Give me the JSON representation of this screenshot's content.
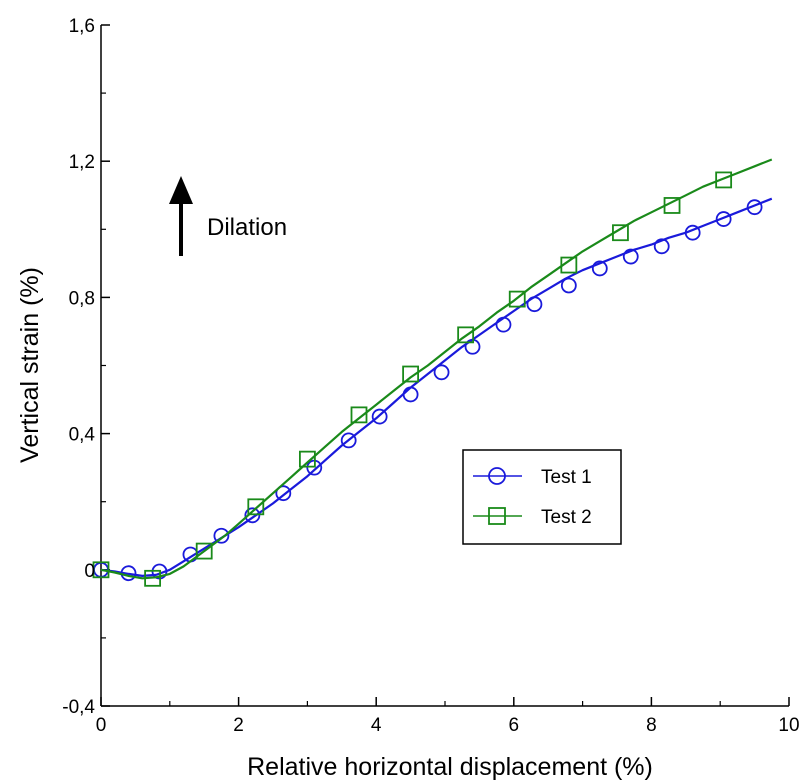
{
  "chart_data": {
    "type": "line",
    "xlabel": "Relative horizontal displacement (%)",
    "ylabel": "Vertical strain (%)",
    "xlim": [
      0,
      10
    ],
    "ylim": [
      -0.4,
      1.6
    ],
    "xticks": [
      0,
      2,
      4,
      6,
      8,
      10
    ],
    "xtick_labels": [
      "0",
      "2",
      "4",
      "6",
      "8",
      "10"
    ],
    "yticks": [
      -0.4,
      0,
      0.4,
      0.8,
      1.2,
      1.6
    ],
    "ytick_labels": [
      "-0,4",
      "0",
      "0,4",
      "0,8",
      "1,2",
      "1,6"
    ],
    "grid": false,
    "legend_position": "center-right",
    "annotation": {
      "text": "Dilation",
      "arrow": "up"
    },
    "series": [
      {
        "name": "Test 1",
        "color": "#1a1adb",
        "marker": "circle",
        "line_x": [
          0,
          0.2,
          0.4,
          0.6,
          0.8,
          1.0,
          1.2,
          1.4,
          1.6,
          1.8,
          2.0,
          2.25,
          2.5,
          2.75,
          3.0,
          3.25,
          3.5,
          3.75,
          4.0,
          4.25,
          4.5,
          4.75,
          5.0,
          5.25,
          5.5,
          5.75,
          6.0,
          6.25,
          6.5,
          6.75,
          7.0,
          7.25,
          7.5,
          7.75,
          8.0,
          8.25,
          8.5,
          8.75,
          9.0,
          9.25,
          9.5,
          9.75
        ],
        "line_y": [
          0.0,
          -0.005,
          -0.012,
          -0.018,
          -0.015,
          0.0,
          0.025,
          0.05,
          0.075,
          0.1,
          0.125,
          0.16,
          0.195,
          0.235,
          0.275,
          0.32,
          0.365,
          0.405,
          0.445,
          0.49,
          0.535,
          0.575,
          0.615,
          0.655,
          0.69,
          0.725,
          0.76,
          0.795,
          0.825,
          0.855,
          0.88,
          0.9,
          0.92,
          0.94,
          0.955,
          0.975,
          0.99,
          1.01,
          1.03,
          1.05,
          1.07,
          1.09
        ],
        "marker_x": [
          0,
          0.4,
          0.85,
          1.3,
          1.75,
          2.2,
          2.65,
          3.1,
          3.6,
          4.05,
          4.5,
          4.95,
          5.4,
          5.85,
          6.3,
          6.8,
          7.25,
          7.7,
          8.15,
          8.6,
          9.05,
          9.5
        ],
        "marker_y": [
          0.0,
          -0.01,
          -0.005,
          0.045,
          0.1,
          0.16,
          0.225,
          0.3,
          0.38,
          0.45,
          0.515,
          0.58,
          0.655,
          0.72,
          0.78,
          0.835,
          0.885,
          0.92,
          0.95,
          0.99,
          1.03,
          1.065
        ]
      },
      {
        "name": "Test 2",
        "color": "#1a8a1a",
        "marker": "square",
        "line_x": [
          0,
          0.2,
          0.4,
          0.6,
          0.8,
          1.0,
          1.2,
          1.4,
          1.6,
          1.8,
          2.0,
          2.25,
          2.5,
          2.75,
          3.0,
          3.25,
          3.5,
          3.75,
          4.0,
          4.25,
          4.5,
          4.75,
          5.0,
          5.25,
          5.5,
          5.75,
          6.0,
          6.25,
          6.5,
          6.75,
          7.0,
          7.25,
          7.5,
          7.75,
          8.0,
          8.25,
          8.5,
          8.75,
          9.0,
          9.25,
          9.5,
          9.75
        ],
        "line_y": [
          0.0,
          -0.008,
          -0.018,
          -0.025,
          -0.022,
          -0.012,
          0.01,
          0.04,
          0.07,
          0.1,
          0.135,
          0.18,
          0.225,
          0.27,
          0.315,
          0.36,
          0.405,
          0.445,
          0.485,
          0.525,
          0.565,
          0.6,
          0.64,
          0.68,
          0.715,
          0.755,
          0.79,
          0.83,
          0.865,
          0.9,
          0.935,
          0.965,
          0.995,
          1.025,
          1.05,
          1.075,
          1.1,
          1.125,
          1.145,
          1.165,
          1.185,
          1.205
        ],
        "marker_x": [
          0,
          0.75,
          1.5,
          2.25,
          3.0,
          3.75,
          4.5,
          5.3,
          6.05,
          6.8,
          7.55,
          8.3,
          9.05
        ],
        "marker_y": [
          0.0,
          -0.025,
          0.055,
          0.185,
          0.325,
          0.455,
          0.575,
          0.69,
          0.795,
          0.895,
          0.99,
          1.07,
          1.145
        ]
      }
    ]
  }
}
